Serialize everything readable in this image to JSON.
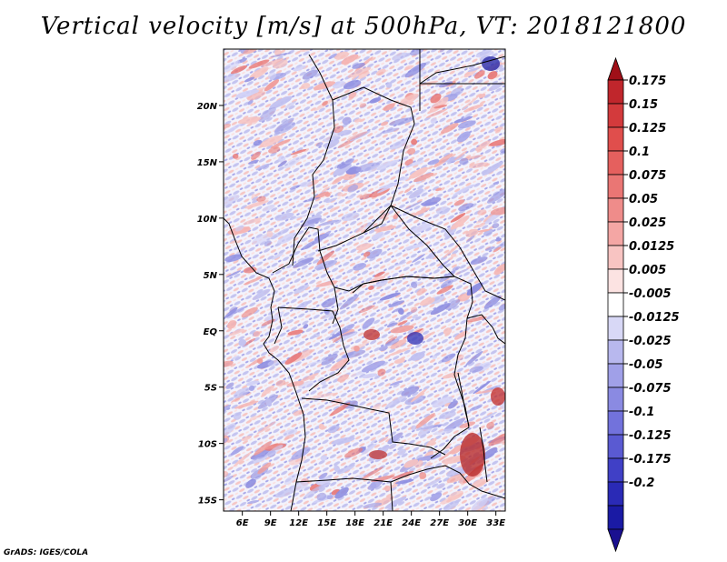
{
  "title": "Vertical velocity [m/s] at 500hPa, VT: 2018121800",
  "credit": "GrADS: IGES/COLA",
  "map": {
    "lon_range": [
      4,
      34
    ],
    "lat_range": [
      -16,
      25
    ],
    "lat_ticks": [
      {
        "value": 20,
        "label": "20N"
      },
      {
        "value": 15,
        "label": "15N"
      },
      {
        "value": 10,
        "label": "10N"
      },
      {
        "value": 5,
        "label": "5N"
      },
      {
        "value": 0,
        "label": "EQ"
      },
      {
        "value": -5,
        "label": "5S"
      },
      {
        "value": -10,
        "label": "10S"
      },
      {
        "value": -15,
        "label": "15S"
      }
    ],
    "lon_ticks": [
      {
        "value": 6,
        "label": "6E"
      },
      {
        "value": 9,
        "label": "9E"
      },
      {
        "value": 12,
        "label": "12E"
      },
      {
        "value": 15,
        "label": "15E"
      },
      {
        "value": 18,
        "label": "18E"
      },
      {
        "value": 21,
        "label": "21E"
      },
      {
        "value": 24,
        "label": "24E"
      },
      {
        "value": 27,
        "label": "27E"
      },
      {
        "value": 30,
        "label": "30E"
      },
      {
        "value": 33,
        "label": "33E"
      }
    ]
  },
  "colorbar": {
    "levels": [
      "0.175",
      "0.15",
      "0.125",
      "0.1",
      "0.075",
      "0.05",
      "0.025",
      "0.0125",
      "0.005",
      "-0.005",
      "-0.0125",
      "-0.025",
      "-0.05",
      "-0.075",
      "-0.1",
      "-0.125",
      "-0.175",
      "-0.2"
    ],
    "colors": [
      "#c0262c",
      "#d33a3c",
      "#e04e4c",
      "#e5605e",
      "#ea7674",
      "#ef8c8a",
      "#f4a6a4",
      "#f8c4c2",
      "#fce3e2",
      "#ffffff",
      "#d8d8f6",
      "#b8b8ee",
      "#a0a0e8",
      "#8a8ae2",
      "#7272dc",
      "#5a5ad2",
      "#4040c6",
      "#2a2ab6",
      "#1a1aa4"
    ],
    "top_color": "#a01018",
    "bottom_color": "#1a1090"
  }
}
